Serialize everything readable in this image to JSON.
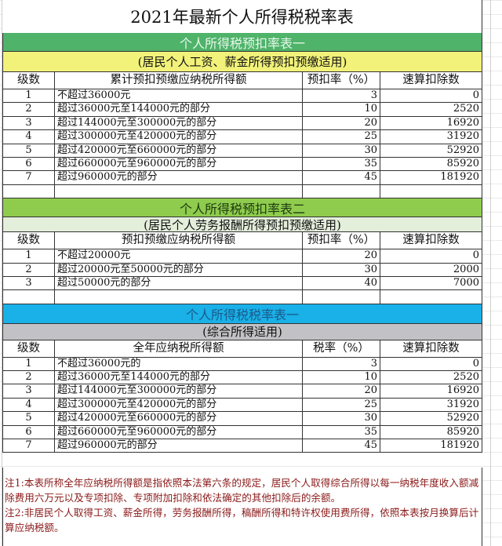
{
  "title": "2021年最新个人所得税税率表",
  "colors": {
    "table1_header": "#4fb36a",
    "table1_sub": "#f2f27a",
    "table2_header": "#8fcc4e",
    "table2_sub": "#e3eedb",
    "table3_header": "#1ab0e8",
    "table3_sub": "#c2c2c6",
    "notes_text": "#8b1a1a"
  },
  "tables": [
    {
      "header": "个人所得税预扣率表一",
      "subtitle": "(居民个人工资、薪金所得预扣预缴适用)",
      "columns": [
        "级数",
        "累计预扣预缴应纳税所得额",
        "预扣率（%）",
        "速算扣除数"
      ],
      "rows": [
        [
          "1",
          "不超过36000元",
          "3",
          "0"
        ],
        [
          "2",
          "超过36000元至144000元的部分",
          "10",
          "2520"
        ],
        [
          "3",
          "超过144000元至300000元的部分",
          "20",
          "16920"
        ],
        [
          "4",
          "超过300000元至420000元的部分",
          "25",
          "31920"
        ],
        [
          "5",
          "超过420000元至660000元的部分",
          "30",
          "52920"
        ],
        [
          "6",
          "超过660000元至960000元的部分",
          "35",
          "85920"
        ],
        [
          "7",
          "超过960000元的部分",
          "45",
          "181920"
        ]
      ]
    },
    {
      "header": "个人所得税预扣率表二",
      "subtitle": "(居民个人劳务报酬所得预扣预缴适用)",
      "columns": [
        "级数",
        "预扣预缴应纳税所得额",
        "预扣率（%）",
        "速算扣除数"
      ],
      "rows": [
        [
          "1",
          "不超过20000元",
          "20",
          "0"
        ],
        [
          "2",
          "超过20000元至50000元的部分",
          "30",
          "2000"
        ],
        [
          "3",
          "超过50000元的部分",
          "40",
          "7000"
        ]
      ]
    },
    {
      "header": "个人所得税税率表一",
      "subtitle": "(综合所得适用)",
      "columns": [
        "级数",
        "全年应纳税所得额",
        "税率（%）",
        "速算扣除数"
      ],
      "rows": [
        [
          "1",
          "不超过36000元的",
          "3",
          "0"
        ],
        [
          "2",
          "超过36000元至144000元的部分",
          "10",
          "2520"
        ],
        [
          "3",
          "超过144000元至300000元的部分",
          "20",
          "16920"
        ],
        [
          "4",
          "超过300000元至420000元的部分",
          "25",
          "31920"
        ],
        [
          "5",
          "超过420000元至660000元的部分",
          "30",
          "52920"
        ],
        [
          "6",
          "超过660000元至960000元的部分",
          "35",
          "85920"
        ],
        [
          "7",
          "超过960000元的部分",
          "45",
          "181920"
        ]
      ]
    }
  ],
  "notes": [
    "注1:本表所称全年应纳税所得额是指依照本法第六条的规定，居民个人取得综合所得以每一纳税年度收入额减除费用六万元以及专项扣除、专项附加扣除和依法确定的其他扣除后的余额。",
    "注2:非居民个人取得工资、薪金所得，劳务报酬所得，稿酬所得和特许权使用费所得，依照本表按月换算后计算应纳税额。"
  ]
}
